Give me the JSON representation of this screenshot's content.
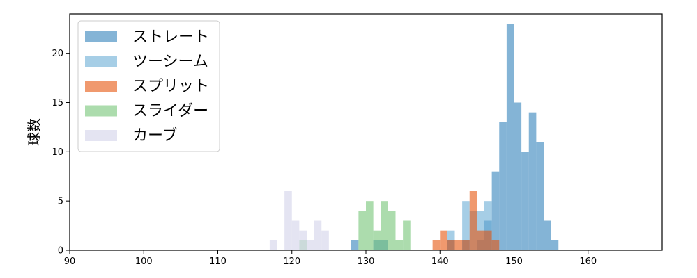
{
  "chart_data": {
    "type": "bar",
    "subtype": "overlapping-histogram",
    "title": "",
    "xlabel": "",
    "ylabel": "球数",
    "xlim": [
      90,
      170
    ],
    "ylim": [
      0,
      24
    ],
    "xticks": [
      90,
      100,
      110,
      120,
      130,
      140,
      150,
      160
    ],
    "yticks": [
      0,
      5,
      10,
      15,
      20
    ],
    "bin_width": 1,
    "legend_position": "top-left",
    "grid": false,
    "series": [
      {
        "name": "ストレート",
        "color": "#1f77b4",
        "opacity": 0.55,
        "bins": [
          {
            "x": 128,
            "count": 1
          },
          {
            "x": 131,
            "count": 1
          },
          {
            "x": 132,
            "count": 1
          },
          {
            "x": 141,
            "count": 1
          },
          {
            "x": 143,
            "count": 1
          },
          {
            "x": 145,
            "count": 1
          },
          {
            "x": 146,
            "count": 3
          },
          {
            "x": 147,
            "count": 8
          },
          {
            "x": 148,
            "count": 13
          },
          {
            "x": 149,
            "count": 23
          },
          {
            "x": 150,
            "count": 15
          },
          {
            "x": 151,
            "count": 10
          },
          {
            "x": 152,
            "count": 14
          },
          {
            "x": 153,
            "count": 11
          },
          {
            "x": 154,
            "count": 3
          },
          {
            "x": 155,
            "count": 1
          }
        ]
      },
      {
        "name": "ツーシーム",
        "color": "#6baed6",
        "opacity": 0.6,
        "bins": [
          {
            "x": 141,
            "count": 2
          },
          {
            "x": 143,
            "count": 5
          },
          {
            "x": 144,
            "count": 4
          },
          {
            "x": 145,
            "count": 4
          },
          {
            "x": 146,
            "count": 5
          }
        ]
      },
      {
        "name": "スプリット",
        "color": "#e6550d",
        "opacity": 0.6,
        "bins": [
          {
            "x": 139,
            "count": 1
          },
          {
            "x": 140,
            "count": 2
          },
          {
            "x": 141,
            "count": 1
          },
          {
            "x": 142,
            "count": 1
          },
          {
            "x": 143,
            "count": 1
          },
          {
            "x": 144,
            "count": 6
          },
          {
            "x": 145,
            "count": 2
          },
          {
            "x": 146,
            "count": 2
          },
          {
            "x": 147,
            "count": 1
          }
        ]
      },
      {
        "name": "スライダー",
        "color": "#74c476",
        "opacity": 0.6,
        "bins": [
          {
            "x": 121,
            "count": 1
          },
          {
            "x": 129,
            "count": 4
          },
          {
            "x": 130,
            "count": 5
          },
          {
            "x": 131,
            "count": 2
          },
          {
            "x": 132,
            "count": 5
          },
          {
            "x": 133,
            "count": 4
          },
          {
            "x": 134,
            "count": 1
          },
          {
            "x": 135,
            "count": 3
          }
        ]
      },
      {
        "name": "カーブ",
        "color": "#d9d9ec",
        "opacity": 0.7,
        "bins": [
          {
            "x": 117,
            "count": 1
          },
          {
            "x": 119,
            "count": 6
          },
          {
            "x": 120,
            "count": 3
          },
          {
            "x": 121,
            "count": 2
          },
          {
            "x": 122,
            "count": 1
          },
          {
            "x": 123,
            "count": 3
          },
          {
            "x": 124,
            "count": 2
          }
        ]
      }
    ]
  }
}
